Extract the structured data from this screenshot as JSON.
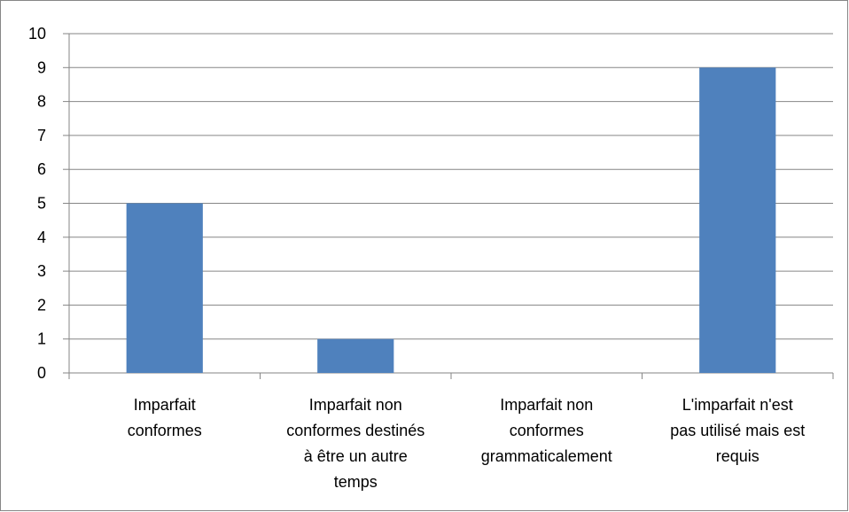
{
  "chart_data": {
    "type": "bar",
    "categories": [
      "Imparfait\nconformes",
      "Imparfait non\nconformes destinés\nà être un autre\ntemps",
      "Imparfait non\nconformes\ngrammaticalement",
      "L'imparfait n'est\npas utilisé mais est\nrequis"
    ],
    "values": [
      5,
      1,
      0,
      9
    ],
    "color": "#4f81bd",
    "ylim": [
      0,
      10
    ],
    "yticks": [
      0,
      1,
      2,
      3,
      4,
      5,
      6,
      7,
      8,
      9,
      10
    ],
    "grid": true
  }
}
